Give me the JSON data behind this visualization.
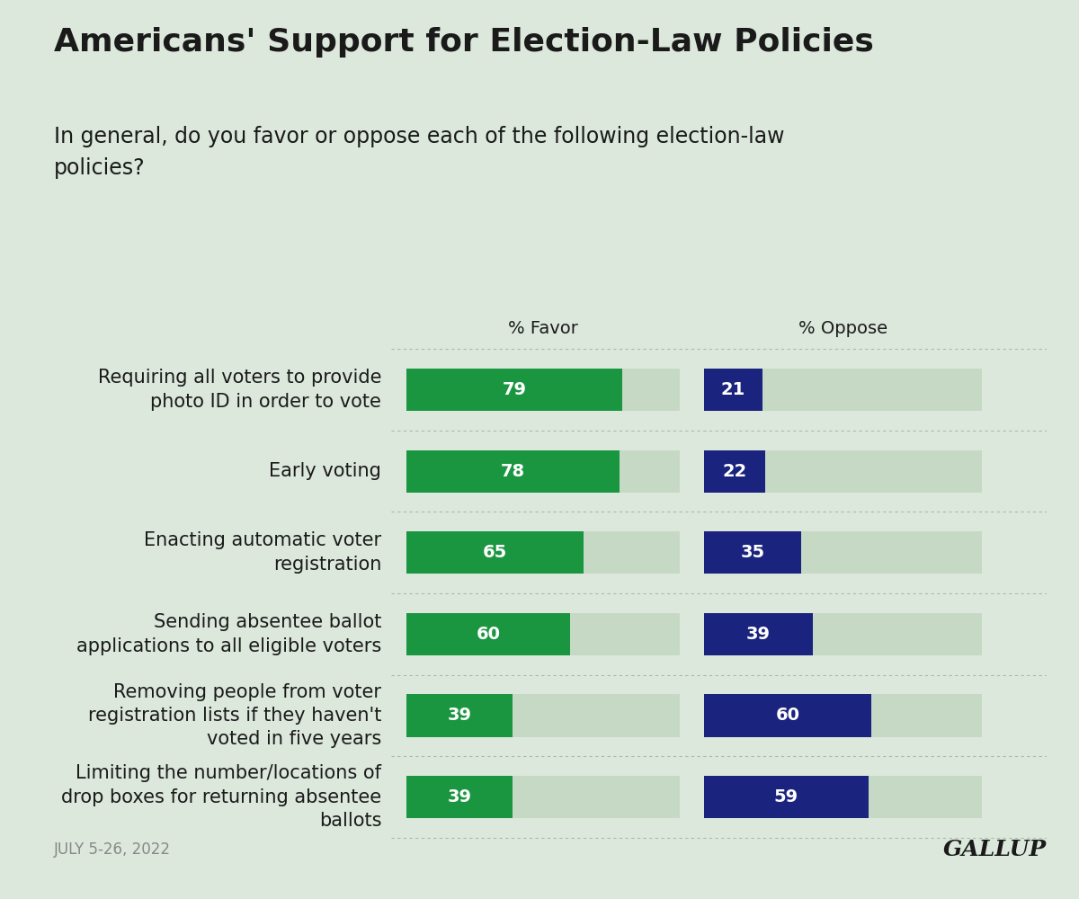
{
  "title": "Americans' Support for Election-Law Policies",
  "subtitle": "In general, do you favor or oppose each of the following election-law\npolicies?",
  "footer_left": "JULY 5-26, 2022",
  "footer_right": "GALLUP",
  "background_color": "#dce8dc",
  "bar_bg_color": "#c5d9c5",
  "favor_color": "#1a9641",
  "oppose_color": "#1a237e",
  "text_color_white": "#ffffff",
  "text_color_dark": "#1a1a1a",
  "footer_color": "#888888",
  "categories": [
    "Requiring all voters to provide\nphoto ID in order to vote",
    "Early voting",
    "Enacting automatic voter\nregistration",
    "Sending absentee ballot\napplications to all eligible voters",
    "Removing people from voter\nregistration lists if they haven't\nvoted in five years",
    "Limiting the number/locations of\ndrop boxes for returning absentee\nballots"
  ],
  "favor_values": [
    79,
    78,
    65,
    60,
    39,
    39
  ],
  "oppose_values": [
    21,
    22,
    35,
    39,
    60,
    59
  ],
  "favor_header": "% Favor",
  "oppose_header": "% Oppose",
  "max_bar_value": 100,
  "label_fontsize": 14,
  "header_fontsize": 14,
  "title_fontsize": 26,
  "subtitle_fontsize": 17,
  "footer_fontsize": 12,
  "gallup_fontsize": 18,
  "category_fontsize": 15
}
